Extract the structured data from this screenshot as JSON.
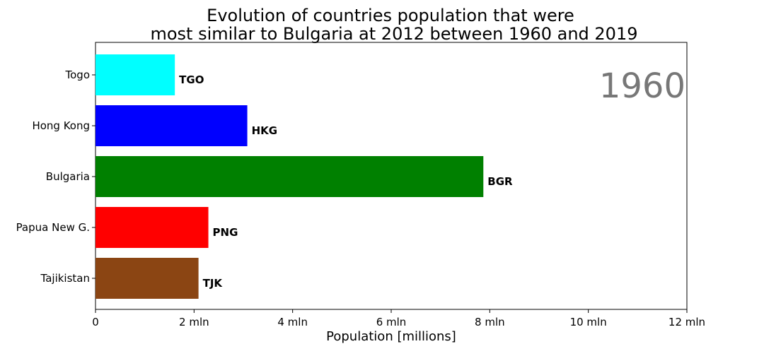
{
  "chart_data": {
    "type": "bar",
    "orientation": "horizontal",
    "title_lines": [
      "Evolution of countries population that were",
      "most similar to Bulgaria at 2012 between 1960 and 2019"
    ],
    "year": "1960",
    "xlabel": "Population [millions]",
    "xlim": [
      0,
      12
    ],
    "x_ticks": [
      {
        "value": 0,
        "label": "0"
      },
      {
        "value": 2,
        "label": "2 mln"
      },
      {
        "value": 4,
        "label": "4 mln"
      },
      {
        "value": 6,
        "label": "6 mln"
      },
      {
        "value": 8,
        "label": "8 mln"
      },
      {
        "value": 10,
        "label": "10 mln"
      },
      {
        "value": 12,
        "label": "12 mln"
      }
    ],
    "bars": [
      {
        "category": "Togo",
        "code": "TGO",
        "value": 1.61,
        "color": "#00ffff"
      },
      {
        "category": "Hong Kong",
        "code": "HKG",
        "value": 3.08,
        "color": "#0000ff"
      },
      {
        "category": "Bulgaria",
        "code": "BGR",
        "value": 7.87,
        "color": "#008000"
      },
      {
        "category": "Papua New G.",
        "code": "PNG",
        "value": 2.29,
        "color": "#ff0000"
      },
      {
        "category": "Tajikistan",
        "code": "TJK",
        "value": 2.09,
        "color": "#8b4513"
      }
    ],
    "grid": false,
    "legend": "none"
  }
}
